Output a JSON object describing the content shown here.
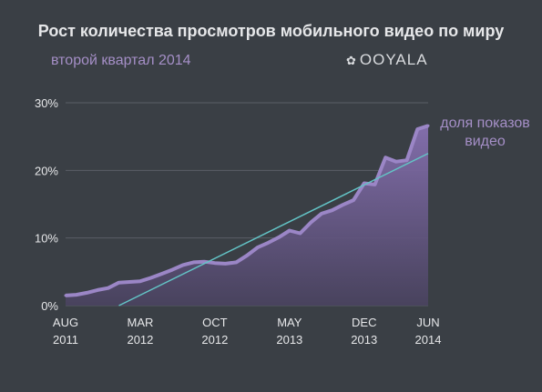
{
  "header": {
    "title": "Рост количества просмотров мобильного видео по миру",
    "subtitle": "второй квартал 2014",
    "logo_text": "OOYALA",
    "logo_icon": "ooyala-flower-icon"
  },
  "colors": {
    "background": "#3a3f45",
    "area_fill": "#6b5a8e",
    "area_line": "#9b86c6",
    "trend_line": "#63c4c6",
    "grid": "#5a5f66",
    "text": "#e6e7e9",
    "accent_text": "#a58fc7"
  },
  "chart_data": {
    "type": "area",
    "title": "Рост количества просмотров мобильного видео по миру",
    "subtitle": "второй квартал 2014",
    "ylim": [
      0,
      30
    ],
    "yticks": [
      0,
      10,
      20,
      30
    ],
    "ytick_labels": [
      "0%",
      "10%",
      "20%",
      "30%"
    ],
    "xlim": [
      "2011-08",
      "2014-06"
    ],
    "xticks": [
      "2011-08",
      "2012-03",
      "2012-10",
      "2013-05",
      "2013-12",
      "2014-06"
    ],
    "xtick_labels": [
      [
        "AUG",
        "2011"
      ],
      [
        "MAR",
        "2012"
      ],
      [
        "OCT",
        "2012"
      ],
      [
        "MAY",
        "2013"
      ],
      [
        "DEC",
        "2013"
      ],
      [
        "JUN",
        "2014"
      ]
    ],
    "grid": true,
    "series": [
      {
        "name": "доля показов видео",
        "x": [
          "2011-08",
          "2011-09",
          "2011-10",
          "2011-11",
          "2011-12",
          "2012-01",
          "2012-02",
          "2012-03",
          "2012-04",
          "2012-05",
          "2012-06",
          "2012-07",
          "2012-08",
          "2012-09",
          "2012-10",
          "2012-11",
          "2012-12",
          "2013-01",
          "2013-02",
          "2013-03",
          "2013-04",
          "2013-05",
          "2013-06",
          "2013-07",
          "2013-08",
          "2013-09",
          "2013-10",
          "2013-11",
          "2013-12",
          "2014-01",
          "2014-02",
          "2014-03",
          "2014-04",
          "2014-05",
          "2014-06"
        ],
        "values": [
          1.5,
          1.6,
          1.9,
          2.3,
          2.6,
          3.4,
          3.5,
          3.6,
          4.1,
          4.7,
          5.3,
          6.0,
          6.4,
          6.5,
          6.3,
          6.2,
          6.4,
          7.4,
          8.6,
          9.3,
          10.1,
          11.1,
          10.7,
          12.3,
          13.6,
          14.1,
          14.9,
          15.6,
          18.1,
          17.9,
          21.9,
          21.3,
          21.5,
          26.1,
          26.6
        ]
      },
      {
        "name": "trend",
        "x": [
          "2012-01",
          "2014-06"
        ],
        "values": [
          0,
          22.5
        ]
      }
    ],
    "series_label": [
      "доля показов",
      "видео"
    ]
  }
}
